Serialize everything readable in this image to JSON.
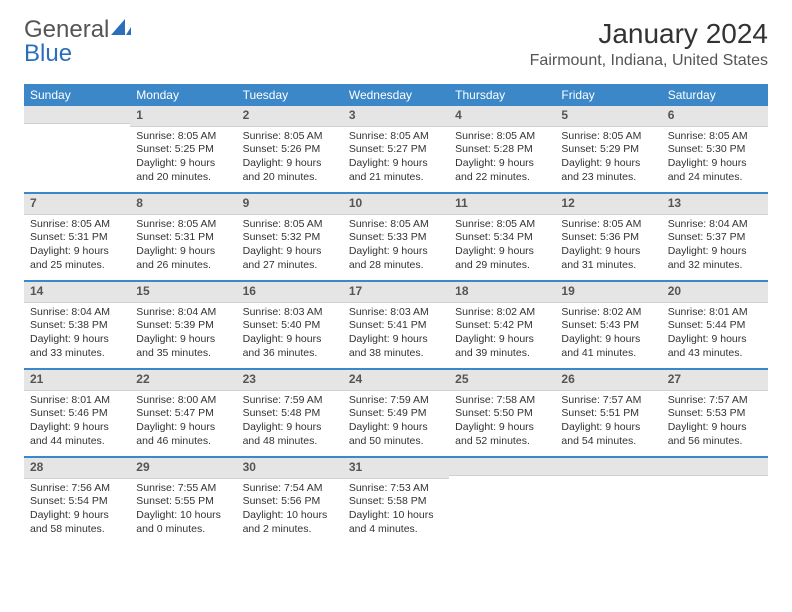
{
  "logo": {
    "text_gray": "General",
    "text_blue": "Blue",
    "icon_color": "#2b6fba"
  },
  "title": "January 2024",
  "location": "Fairmount, Indiana, United States",
  "colors": {
    "header_bg": "#3b87c8",
    "header_text": "#ffffff",
    "daynum_bg": "#e5e5e5",
    "separator": "#3b87c8"
  },
  "day_names": [
    "Sunday",
    "Monday",
    "Tuesday",
    "Wednesday",
    "Thursday",
    "Friday",
    "Saturday"
  ],
  "weeks": [
    [
      {
        "num": "",
        "sunrise": "",
        "sunset": "",
        "daylight": ""
      },
      {
        "num": "1",
        "sunrise": "Sunrise: 8:05 AM",
        "sunset": "Sunset: 5:25 PM",
        "daylight": "Daylight: 9 hours and 20 minutes."
      },
      {
        "num": "2",
        "sunrise": "Sunrise: 8:05 AM",
        "sunset": "Sunset: 5:26 PM",
        "daylight": "Daylight: 9 hours and 20 minutes."
      },
      {
        "num": "3",
        "sunrise": "Sunrise: 8:05 AM",
        "sunset": "Sunset: 5:27 PM",
        "daylight": "Daylight: 9 hours and 21 minutes."
      },
      {
        "num": "4",
        "sunrise": "Sunrise: 8:05 AM",
        "sunset": "Sunset: 5:28 PM",
        "daylight": "Daylight: 9 hours and 22 minutes."
      },
      {
        "num": "5",
        "sunrise": "Sunrise: 8:05 AM",
        "sunset": "Sunset: 5:29 PM",
        "daylight": "Daylight: 9 hours and 23 minutes."
      },
      {
        "num": "6",
        "sunrise": "Sunrise: 8:05 AM",
        "sunset": "Sunset: 5:30 PM",
        "daylight": "Daylight: 9 hours and 24 minutes."
      }
    ],
    [
      {
        "num": "7",
        "sunrise": "Sunrise: 8:05 AM",
        "sunset": "Sunset: 5:31 PM",
        "daylight": "Daylight: 9 hours and 25 minutes."
      },
      {
        "num": "8",
        "sunrise": "Sunrise: 8:05 AM",
        "sunset": "Sunset: 5:31 PM",
        "daylight": "Daylight: 9 hours and 26 minutes."
      },
      {
        "num": "9",
        "sunrise": "Sunrise: 8:05 AM",
        "sunset": "Sunset: 5:32 PM",
        "daylight": "Daylight: 9 hours and 27 minutes."
      },
      {
        "num": "10",
        "sunrise": "Sunrise: 8:05 AM",
        "sunset": "Sunset: 5:33 PM",
        "daylight": "Daylight: 9 hours and 28 minutes."
      },
      {
        "num": "11",
        "sunrise": "Sunrise: 8:05 AM",
        "sunset": "Sunset: 5:34 PM",
        "daylight": "Daylight: 9 hours and 29 minutes."
      },
      {
        "num": "12",
        "sunrise": "Sunrise: 8:05 AM",
        "sunset": "Sunset: 5:36 PM",
        "daylight": "Daylight: 9 hours and 31 minutes."
      },
      {
        "num": "13",
        "sunrise": "Sunrise: 8:04 AM",
        "sunset": "Sunset: 5:37 PM",
        "daylight": "Daylight: 9 hours and 32 minutes."
      }
    ],
    [
      {
        "num": "14",
        "sunrise": "Sunrise: 8:04 AM",
        "sunset": "Sunset: 5:38 PM",
        "daylight": "Daylight: 9 hours and 33 minutes."
      },
      {
        "num": "15",
        "sunrise": "Sunrise: 8:04 AM",
        "sunset": "Sunset: 5:39 PM",
        "daylight": "Daylight: 9 hours and 35 minutes."
      },
      {
        "num": "16",
        "sunrise": "Sunrise: 8:03 AM",
        "sunset": "Sunset: 5:40 PM",
        "daylight": "Daylight: 9 hours and 36 minutes."
      },
      {
        "num": "17",
        "sunrise": "Sunrise: 8:03 AM",
        "sunset": "Sunset: 5:41 PM",
        "daylight": "Daylight: 9 hours and 38 minutes."
      },
      {
        "num": "18",
        "sunrise": "Sunrise: 8:02 AM",
        "sunset": "Sunset: 5:42 PM",
        "daylight": "Daylight: 9 hours and 39 minutes."
      },
      {
        "num": "19",
        "sunrise": "Sunrise: 8:02 AM",
        "sunset": "Sunset: 5:43 PM",
        "daylight": "Daylight: 9 hours and 41 minutes."
      },
      {
        "num": "20",
        "sunrise": "Sunrise: 8:01 AM",
        "sunset": "Sunset: 5:44 PM",
        "daylight": "Daylight: 9 hours and 43 minutes."
      }
    ],
    [
      {
        "num": "21",
        "sunrise": "Sunrise: 8:01 AM",
        "sunset": "Sunset: 5:46 PM",
        "daylight": "Daylight: 9 hours and 44 minutes."
      },
      {
        "num": "22",
        "sunrise": "Sunrise: 8:00 AM",
        "sunset": "Sunset: 5:47 PM",
        "daylight": "Daylight: 9 hours and 46 minutes."
      },
      {
        "num": "23",
        "sunrise": "Sunrise: 7:59 AM",
        "sunset": "Sunset: 5:48 PM",
        "daylight": "Daylight: 9 hours and 48 minutes."
      },
      {
        "num": "24",
        "sunrise": "Sunrise: 7:59 AM",
        "sunset": "Sunset: 5:49 PM",
        "daylight": "Daylight: 9 hours and 50 minutes."
      },
      {
        "num": "25",
        "sunrise": "Sunrise: 7:58 AM",
        "sunset": "Sunset: 5:50 PM",
        "daylight": "Daylight: 9 hours and 52 minutes."
      },
      {
        "num": "26",
        "sunrise": "Sunrise: 7:57 AM",
        "sunset": "Sunset: 5:51 PM",
        "daylight": "Daylight: 9 hours and 54 minutes."
      },
      {
        "num": "27",
        "sunrise": "Sunrise: 7:57 AM",
        "sunset": "Sunset: 5:53 PM",
        "daylight": "Daylight: 9 hours and 56 minutes."
      }
    ],
    [
      {
        "num": "28",
        "sunrise": "Sunrise: 7:56 AM",
        "sunset": "Sunset: 5:54 PM",
        "daylight": "Daylight: 9 hours and 58 minutes."
      },
      {
        "num": "29",
        "sunrise": "Sunrise: 7:55 AM",
        "sunset": "Sunset: 5:55 PM",
        "daylight": "Daylight: 10 hours and 0 minutes."
      },
      {
        "num": "30",
        "sunrise": "Sunrise: 7:54 AM",
        "sunset": "Sunset: 5:56 PM",
        "daylight": "Daylight: 10 hours and 2 minutes."
      },
      {
        "num": "31",
        "sunrise": "Sunrise: 7:53 AM",
        "sunset": "Sunset: 5:58 PM",
        "daylight": "Daylight: 10 hours and 4 minutes."
      },
      {
        "num": "",
        "sunrise": "",
        "sunset": "",
        "daylight": ""
      },
      {
        "num": "",
        "sunrise": "",
        "sunset": "",
        "daylight": ""
      },
      {
        "num": "",
        "sunrise": "",
        "sunset": "",
        "daylight": ""
      }
    ]
  ]
}
